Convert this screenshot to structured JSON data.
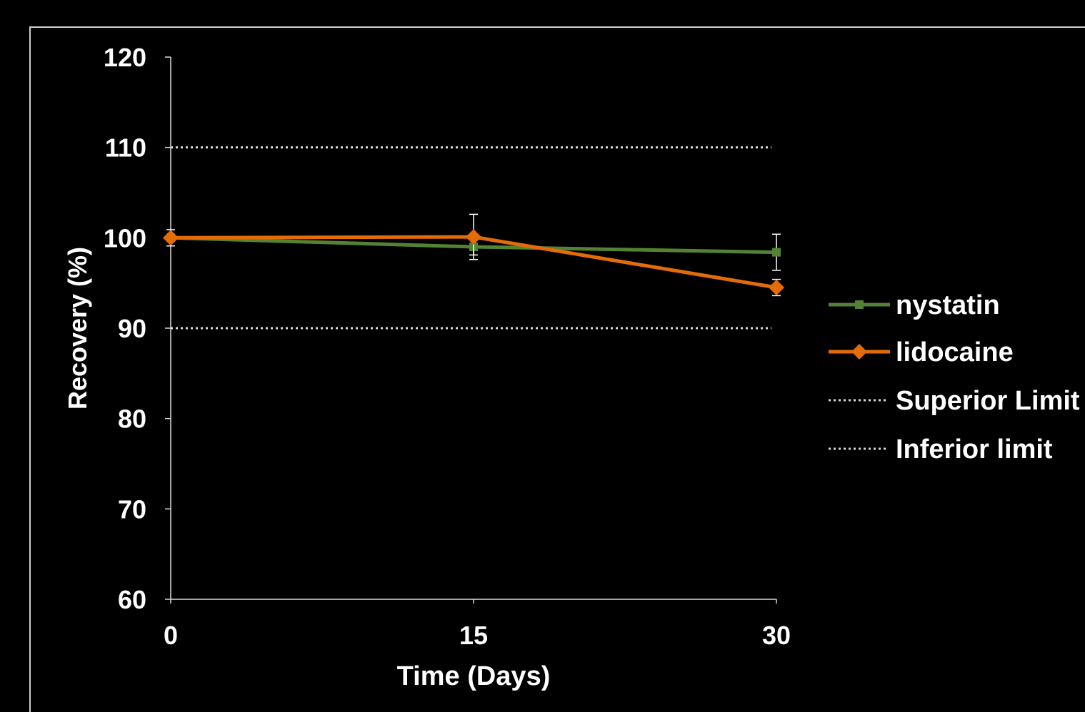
{
  "chart_data": {
    "type": "line",
    "xlabel": "Time (Days)",
    "ylabel": "Recovery (%)",
    "x": [
      0,
      15,
      30
    ],
    "x_tick_labels": [
      "0",
      "15",
      "30"
    ],
    "ylim": [
      60,
      120
    ],
    "y_tick_values": [
      60,
      70,
      80,
      90,
      100,
      110,
      120
    ],
    "y_tick_labels": [
      "60",
      "70",
      "80",
      "90",
      "100",
      "110",
      "120"
    ],
    "grid": false,
    "legend_position": "right",
    "series": [
      {
        "name": "nystatin",
        "color": "#548235",
        "marker": "square",
        "values": [
          100,
          99,
          98.4
        ],
        "error": [
          0.9,
          0.9,
          2.0
        ]
      },
      {
        "name": "lidocaine",
        "color": "#E36C09",
        "marker": "diamond",
        "values": [
          100,
          100.1,
          94.5
        ],
        "error": [
          0,
          2.5,
          0.9
        ]
      }
    ],
    "reference_lines": [
      {
        "name": "Superior Limit",
        "value": 110,
        "color": "#d9d9d9",
        "style": "dotted"
      },
      {
        "name": "Inferior limit",
        "value": 90,
        "color": "#d9d9d9",
        "style": "dotted"
      }
    ]
  }
}
